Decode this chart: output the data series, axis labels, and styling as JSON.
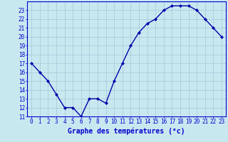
{
  "hours": [
    0,
    1,
    2,
    3,
    4,
    5,
    6,
    7,
    8,
    9,
    10,
    11,
    12,
    13,
    14,
    15,
    16,
    17,
    18,
    19,
    20,
    21,
    22,
    23
  ],
  "temperatures": [
    17.0,
    16.0,
    15.0,
    13.5,
    12.0,
    12.0,
    11.0,
    13.0,
    13.0,
    12.5,
    15.0,
    17.0,
    19.0,
    20.5,
    21.5,
    22.0,
    23.0,
    23.5,
    23.5,
    23.5,
    23.0,
    22.0,
    21.0,
    20.0
  ],
  "ylim": [
    11,
    24
  ],
  "xlim": [
    -0.5,
    23.5
  ],
  "yticks": [
    11,
    12,
    13,
    14,
    15,
    16,
    17,
    18,
    19,
    20,
    21,
    22,
    23
  ],
  "xticks": [
    0,
    1,
    2,
    3,
    4,
    5,
    6,
    7,
    8,
    9,
    10,
    11,
    12,
    13,
    14,
    15,
    16,
    17,
    18,
    19,
    20,
    21,
    22,
    23
  ],
  "line_color": "#0000aa",
  "marker": "D",
  "marker_size": 2,
  "bg_color": "#c8e8f0",
  "grid_color": "#a0c8d8",
  "xlabel": "Graphe des températures (°c)",
  "xlabel_color": "#0000cc",
  "xlabel_fontsize": 7,
  "tick_color": "#0000cc",
  "tick_fontsize": 5.5,
  "axis_bg": "#c8e8f0",
  "border_color": "#0000cc",
  "linewidth": 1.0
}
